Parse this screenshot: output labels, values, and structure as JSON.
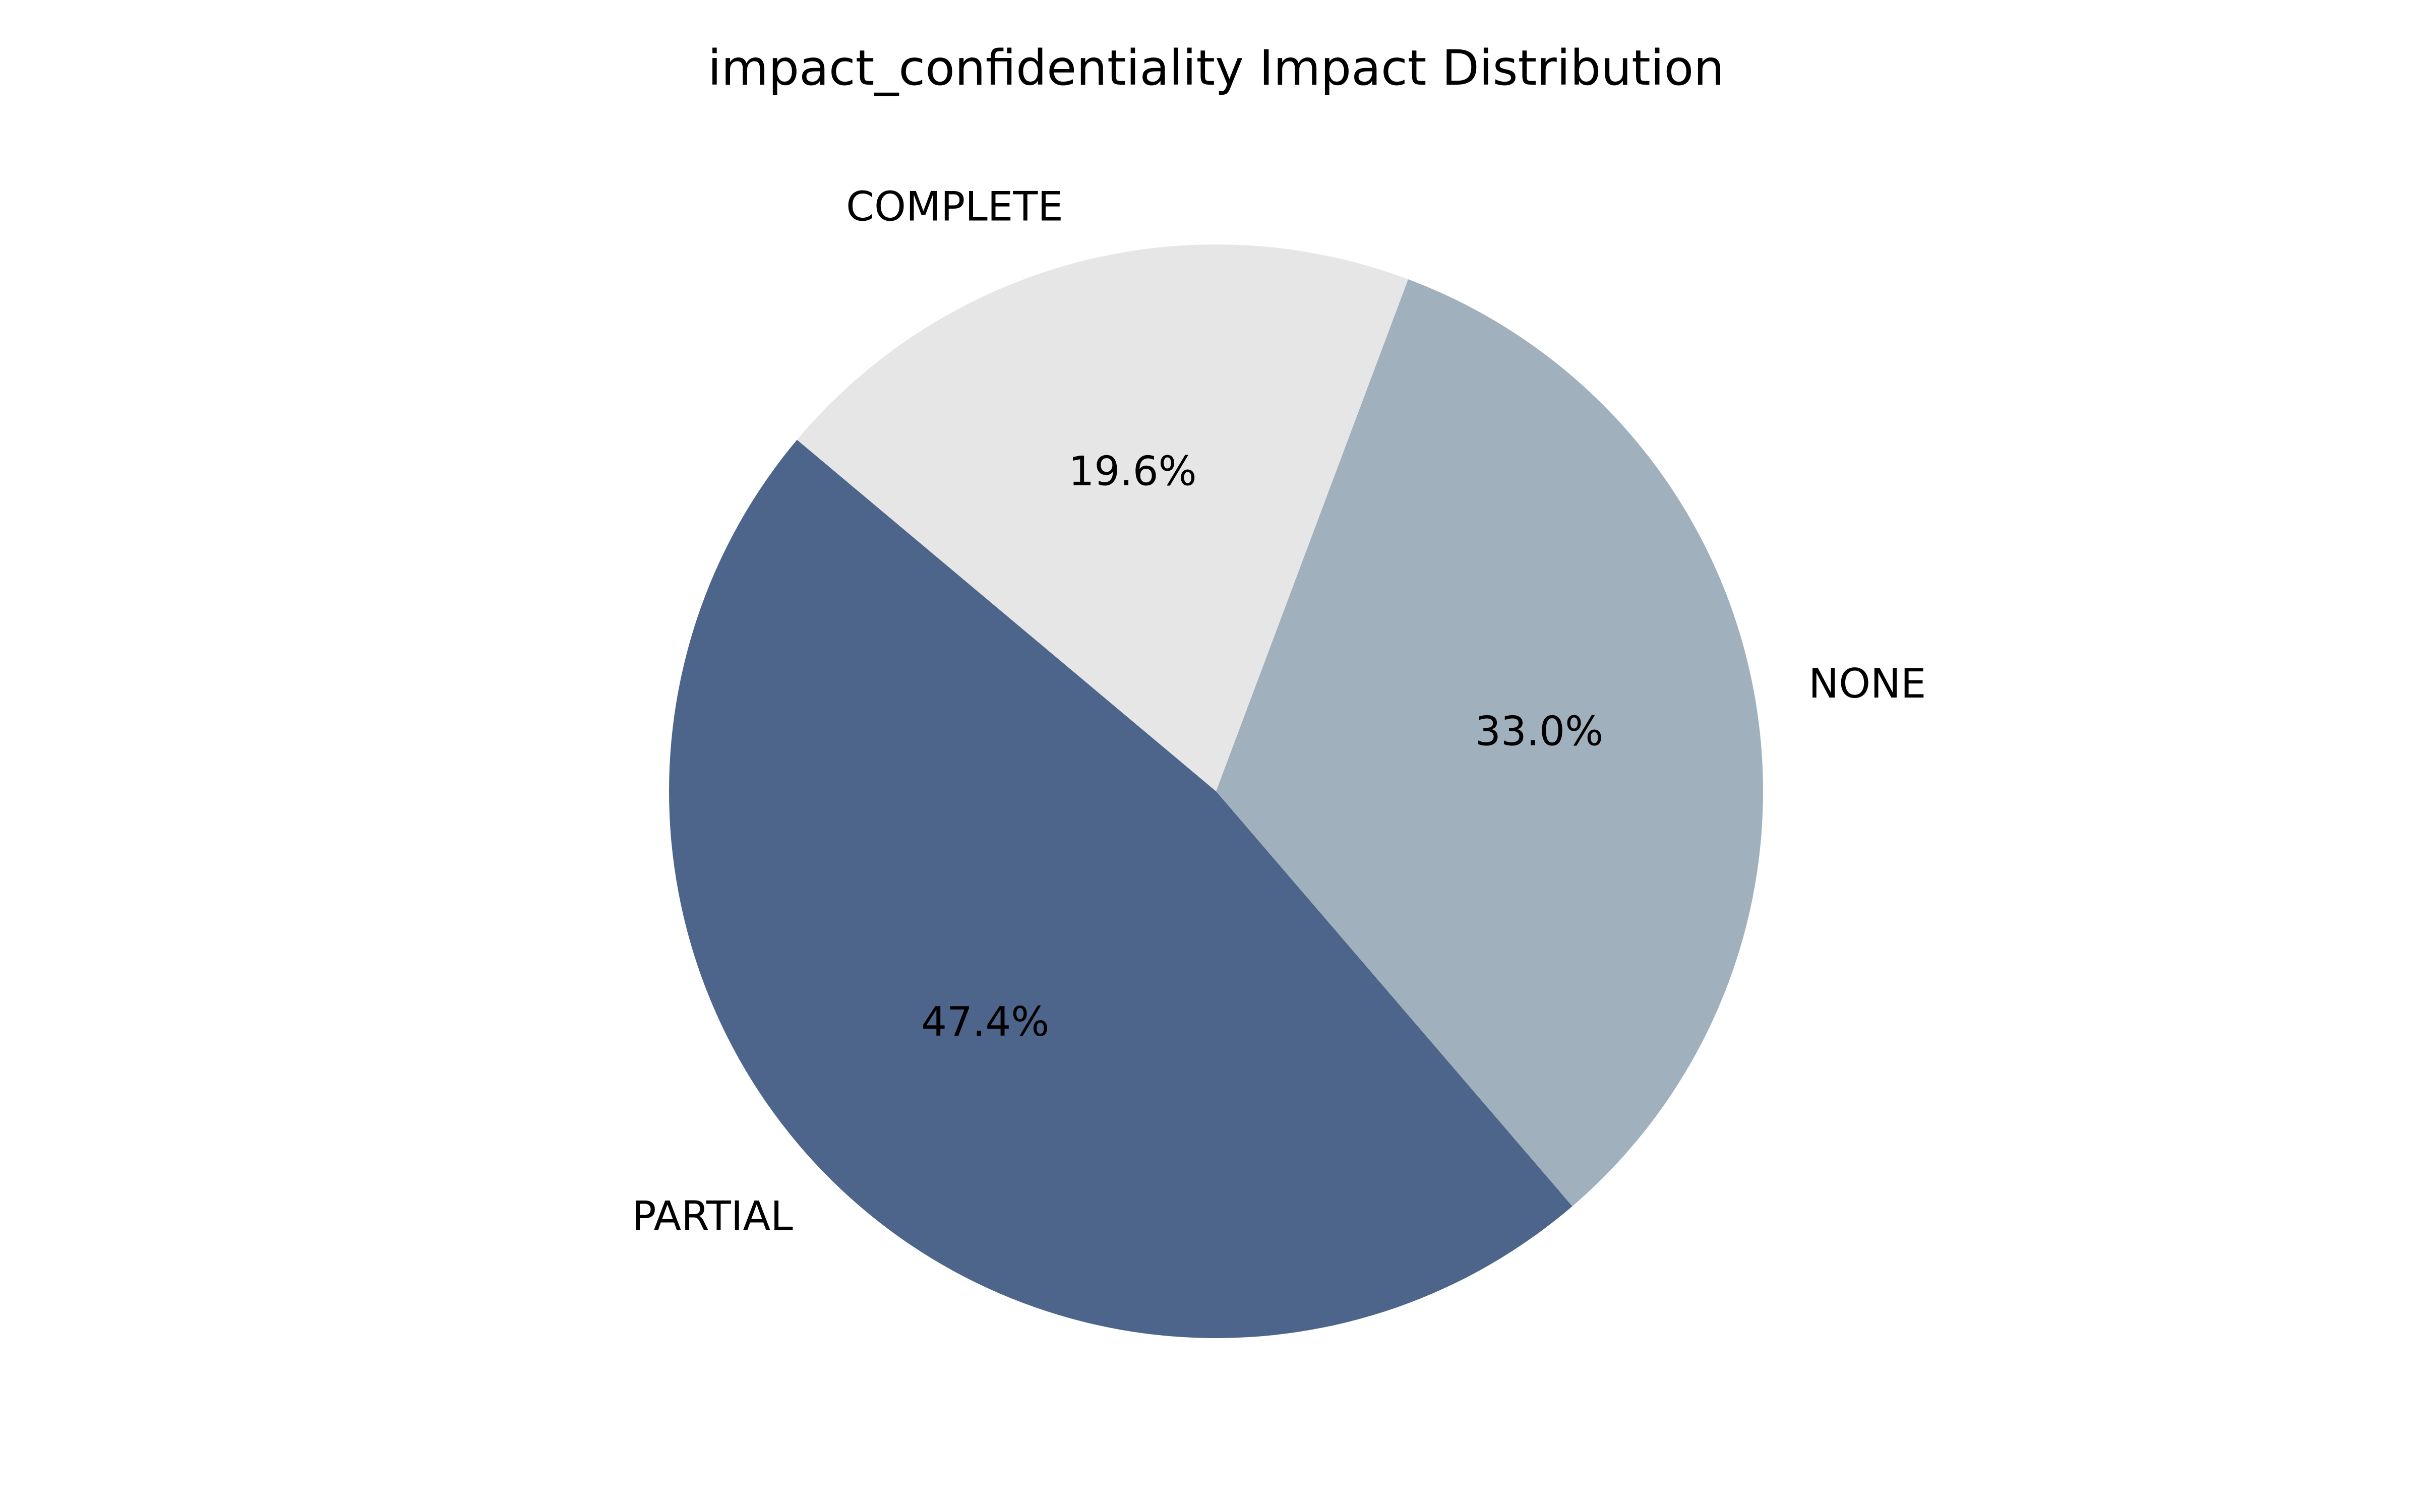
{
  "chart_data": {
    "type": "pie",
    "title": "impact_confidentiality Impact Distribution",
    "start_angle_deg": 140,
    "counterclock": true,
    "slices": [
      {
        "label": "PARTIAL",
        "value": 47.4,
        "pct_label": "47.4%",
        "color": "#4d648b"
      },
      {
        "label": "NONE",
        "value": 33.0,
        "pct_label": "33.0%",
        "color": "#a0b0bd"
      },
      {
        "label": "COMPLETE",
        "value": 19.6,
        "pct_label": "19.6%",
        "color": "#e6e6e6"
      }
    ]
  }
}
